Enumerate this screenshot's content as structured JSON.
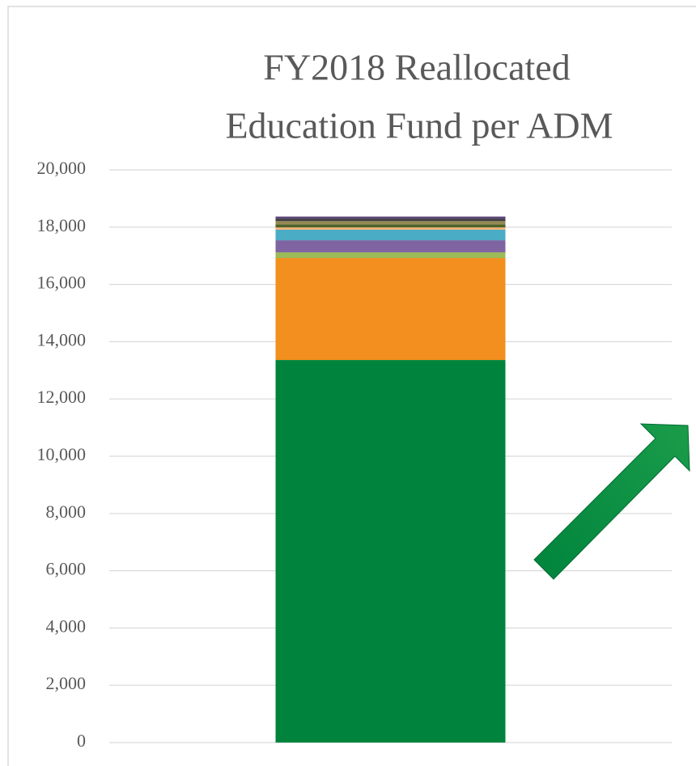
{
  "chart_data": {
    "type": "stacked_bar",
    "title": [
      "FY2018  Reallocated",
      "Education Fund per ADM"
    ],
    "categories": [
      null
    ],
    "series": [
      {
        "color": "#00843d",
        "values": [
          13360
        ]
      },
      {
        "color": "#f28f1e",
        "values": [
          3560
        ]
      },
      {
        "color": "#9bbb59",
        "values": [
          200
        ]
      },
      {
        "color": "#8064a2",
        "values": [
          420
        ]
      },
      {
        "color": "#4bacc6",
        "values": [
          370
        ]
      },
      {
        "color": "#f5b37a",
        "values": [
          80
        ]
      },
      {
        "color": "#4f6228",
        "values": [
          110
        ]
      },
      {
        "color": "#948a54",
        "values": [
          110
        ]
      },
      {
        "color": "#404040",
        "values": [
          80
        ]
      },
      {
        "color": "#5f497a",
        "values": [
          80
        ]
      }
    ],
    "ylim": [
      0,
      20000
    ],
    "yticks": [
      0,
      {
        "value": 2000,
        "label": "2,000"
      },
      {
        "value": 4000,
        "label": "4,000"
      },
      {
        "value": 6000,
        "label": "6,000"
      },
      {
        "value": 8000,
        "label": "8,000"
      },
      {
        "value": 10000,
        "label": "10,000"
      },
      {
        "value": 12000,
        "label": "12,000"
      },
      {
        "value": 14000,
        "label": "14,000"
      },
      {
        "value": 16000,
        "label": "16,000"
      },
      {
        "value": 18000,
        "label": "18,000"
      },
      {
        "value": 20000,
        "label": "20,000"
      }
    ],
    "grid": true
  }
}
